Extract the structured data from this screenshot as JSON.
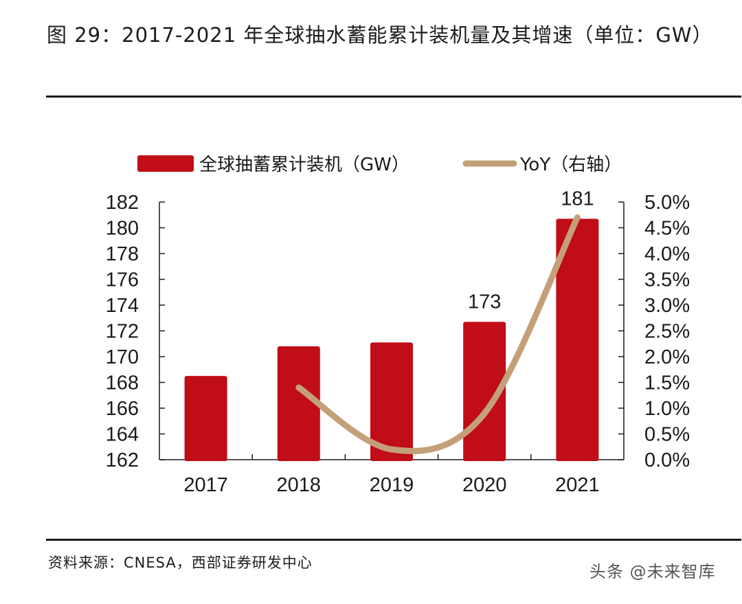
{
  "header": {
    "title": "图 29：2017-2021 年全球抽水蓄能累计装机量及其增速（单位：GW）"
  },
  "footer": {
    "source": "资料来源：CNESA，西部证券研发中心",
    "watermark": "头条 @未来智库"
  },
  "colors": {
    "bar": "#C00D17",
    "line": "#C4A07A",
    "axis": "#1a1a1a"
  },
  "chart_data": {
    "type": "bar",
    "title": "2017-2021 年全球抽水蓄能累计装机量及其增速（单位：GW）",
    "categories": [
      "2017",
      "2018",
      "2019",
      "2020",
      "2021"
    ],
    "series": [
      {
        "name": "全球抽蓄累计装机（GW）",
        "type": "bar",
        "axis": "left",
        "values": [
          168.5,
          170.8,
          171.1,
          172.7,
          180.7
        ]
      },
      {
        "name": "YoY（右轴）",
        "type": "line",
        "axis": "right",
        "smooth": true,
        "values": [
          null,
          1.4,
          0.2,
          0.9,
          4.7
        ]
      }
    ],
    "data_labels": [
      {
        "category": "2020",
        "text": "173"
      },
      {
        "category": "2021",
        "text": "181"
      }
    ],
    "y_left": {
      "label": "",
      "range": [
        162,
        182
      ],
      "ticks": [
        "162",
        "164",
        "166",
        "168",
        "170",
        "172",
        "174",
        "176",
        "178",
        "180",
        "182"
      ]
    },
    "y_right": {
      "label": "",
      "unit": "%",
      "range": [
        0,
        5
      ],
      "ticks": [
        "0.0%",
        "0.5%",
        "1.0%",
        "1.5%",
        "2.0%",
        "2.5%",
        "3.0%",
        "3.5%",
        "4.0%",
        "4.5%",
        "5.0%"
      ]
    },
    "legend": {
      "position": "top",
      "entries": [
        "全球抽蓄累计装机（GW）",
        "YoY（右轴）"
      ]
    },
    "grid": false
  }
}
